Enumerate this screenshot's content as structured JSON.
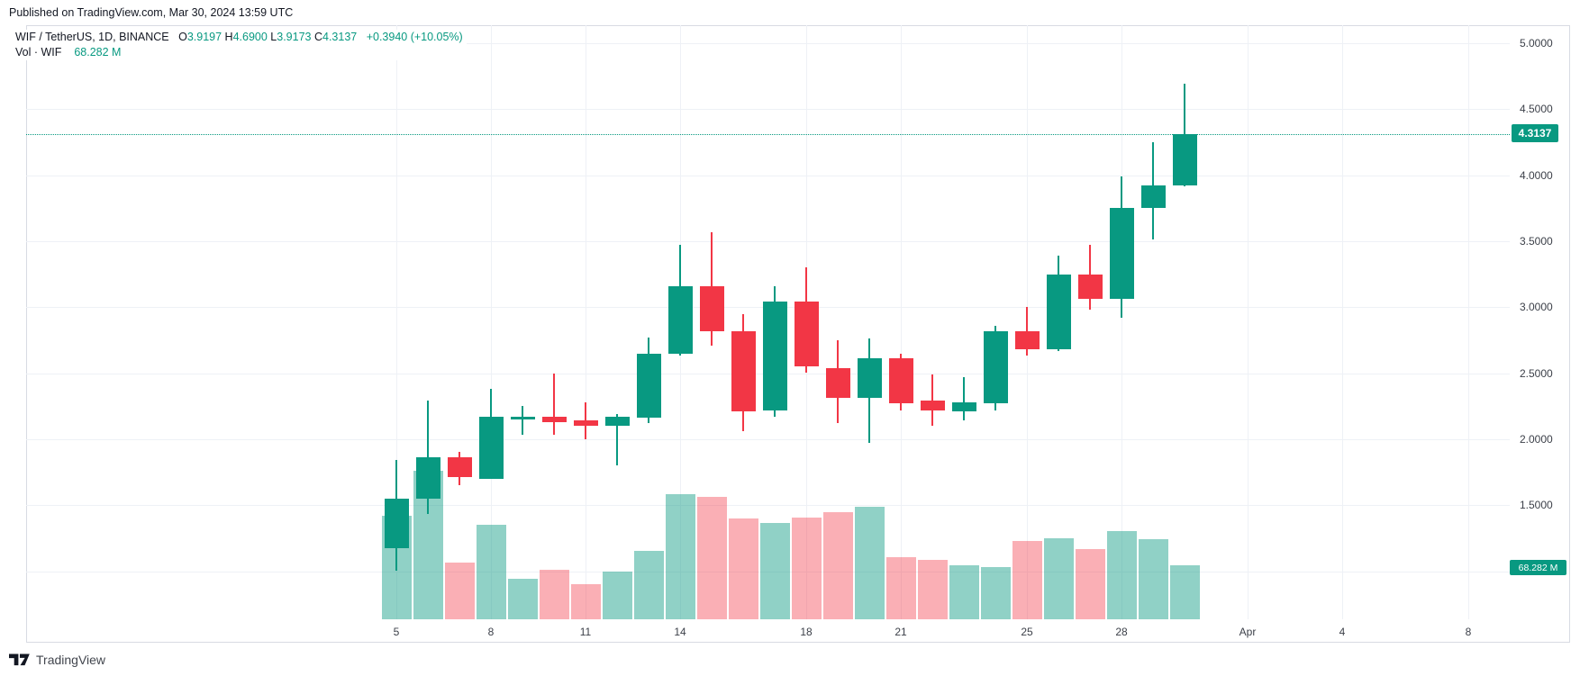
{
  "published_line": "Published on TradingView.com, Mar 30, 2024 13:59 UTC",
  "legend": {
    "symbol_line": "WIF / TetherUS, 1D, BINANCE",
    "ohlc_parts": [
      {
        "k": "O",
        "v": "3.9197"
      },
      {
        "k": "H",
        "v": "4.6900"
      },
      {
        "k": "L",
        "v": "3.9173"
      },
      {
        "k": "C",
        "v": "4.3137"
      }
    ],
    "change": "+0.3940 (+10.05%)",
    "volume_label": "Vol · WIF",
    "volume_value": "68.282 M"
  },
  "watermark_text": "TradingView",
  "colors": {
    "up": "#089981",
    "down": "#f23645",
    "vol_up": "rgba(8,153,129,0.45)",
    "vol_down": "rgba(242,54,69,0.40)",
    "accent": "#089981",
    "grid": "#eef1f6",
    "axis_text": "#3c4049"
  },
  "chart_data": {
    "type": "candlestick_with_volume",
    "title": "WIF / TetherUS, 1D, BINANCE",
    "symbol": "WIF/TetherUS",
    "interval": "1D",
    "exchange": "BINANCE",
    "last_price_label": "4.3137",
    "last_volume_label": "68.282 M",
    "y_axis": {
      "tick_values": [
        5.0,
        4.5,
        4.0,
        3.5,
        3.0,
        2.5,
        2.0,
        1.5
      ],
      "tick_labels": [
        "5.0000",
        "4.5000",
        "4.0000",
        "3.5000",
        "3.0000",
        "2.5000",
        "2.0000",
        "1.5000"
      ],
      "price_line_value": 4.3137
    },
    "x_axis": {
      "ticks": [
        {
          "label": "5",
          "day_index": 0
        },
        {
          "label": "8",
          "day_index": 3
        },
        {
          "label": "11",
          "day_index": 6
        },
        {
          "label": "14",
          "day_index": 9
        },
        {
          "label": "18",
          "day_index": 13
        },
        {
          "label": "21",
          "day_index": 16
        },
        {
          "label": "25",
          "day_index": 20
        },
        {
          "label": "28",
          "day_index": 23
        },
        {
          "label": "Apr",
          "day_index": 27
        },
        {
          "label": "4",
          "day_index": 30
        },
        {
          "label": "8",
          "day_index": 34
        }
      ]
    },
    "candles": [
      {
        "date": "Mar 5",
        "open": 1.17,
        "high": 1.84,
        "low": 1.0,
        "close": 1.55,
        "volume_m": 131
      },
      {
        "date": "Mar 6",
        "open": 1.55,
        "high": 2.29,
        "low": 1.43,
        "close": 1.86,
        "volume_m": 188
      },
      {
        "date": "Mar 7",
        "open": 1.86,
        "high": 1.9,
        "low": 1.65,
        "close": 1.71,
        "volume_m": 72
      },
      {
        "date": "Mar 8",
        "open": 1.7,
        "high": 2.38,
        "low": 1.7,
        "close": 2.17,
        "volume_m": 119
      },
      {
        "date": "Mar 9",
        "open": 2.15,
        "high": 2.25,
        "low": 2.03,
        "close": 2.17,
        "volume_m": 51
      },
      {
        "date": "Mar 10",
        "open": 2.17,
        "high": 2.5,
        "low": 2.03,
        "close": 2.13,
        "volume_m": 63
      },
      {
        "date": "Mar 11",
        "open": 2.14,
        "high": 2.28,
        "low": 2.0,
        "close": 2.1,
        "volume_m": 44
      },
      {
        "date": "Mar 12",
        "open": 2.1,
        "high": 2.19,
        "low": 1.8,
        "close": 2.17,
        "volume_m": 60
      },
      {
        "date": "Mar 13",
        "open": 2.16,
        "high": 2.77,
        "low": 2.12,
        "close": 2.65,
        "volume_m": 86
      },
      {
        "date": "Mar 14",
        "open": 2.65,
        "high": 3.47,
        "low": 2.63,
        "close": 3.16,
        "volume_m": 158
      },
      {
        "date": "Mar 15",
        "open": 3.16,
        "high": 3.57,
        "low": 2.71,
        "close": 2.82,
        "volume_m": 155
      },
      {
        "date": "Mar 16",
        "open": 2.82,
        "high": 2.95,
        "low": 2.06,
        "close": 2.21,
        "volume_m": 127
      },
      {
        "date": "Mar 17",
        "open": 2.22,
        "high": 3.16,
        "low": 2.17,
        "close": 3.04,
        "volume_m": 122
      },
      {
        "date": "Mar 18",
        "open": 3.04,
        "high": 3.3,
        "low": 2.5,
        "close": 2.55,
        "volume_m": 129
      },
      {
        "date": "Mar 19",
        "open": 2.54,
        "high": 2.75,
        "low": 2.12,
        "close": 2.31,
        "volume_m": 135
      },
      {
        "date": "Mar 20",
        "open": 2.31,
        "high": 2.76,
        "low": 1.97,
        "close": 2.61,
        "volume_m": 142
      },
      {
        "date": "Mar 21",
        "open": 2.61,
        "high": 2.65,
        "low": 2.22,
        "close": 2.27,
        "volume_m": 79
      },
      {
        "date": "Mar 22",
        "open": 2.29,
        "high": 2.49,
        "low": 2.1,
        "close": 2.22,
        "volume_m": 75
      },
      {
        "date": "Mar 23",
        "open": 2.21,
        "high": 2.47,
        "low": 2.14,
        "close": 2.28,
        "volume_m": 68
      },
      {
        "date": "Mar 24",
        "open": 2.27,
        "high": 2.86,
        "low": 2.22,
        "close": 2.82,
        "volume_m": 66
      },
      {
        "date": "Mar 25",
        "open": 2.82,
        "high": 3.0,
        "low": 2.63,
        "close": 2.68,
        "volume_m": 99
      },
      {
        "date": "Mar 26",
        "open": 2.68,
        "high": 3.39,
        "low": 2.67,
        "close": 3.25,
        "volume_m": 102
      },
      {
        "date": "Mar 27",
        "open": 3.25,
        "high": 3.47,
        "low": 2.98,
        "close": 3.06,
        "volume_m": 89
      },
      {
        "date": "Mar 28",
        "open": 3.06,
        "high": 3.99,
        "low": 2.92,
        "close": 3.75,
        "volume_m": 112
      },
      {
        "date": "Mar 29",
        "open": 3.75,
        "high": 4.25,
        "low": 3.51,
        "close": 3.92,
        "volume_m": 101
      },
      {
        "date": "Mar 30",
        "open": 3.9197,
        "high": 4.69,
        "low": 3.9173,
        "close": 4.3137,
        "volume_m": 68.282
      }
    ]
  }
}
